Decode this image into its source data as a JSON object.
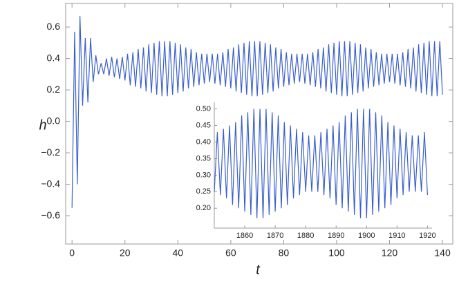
{
  "chart_data": [
    {
      "type": "line",
      "xlabel": "t",
      "ylabel": "h",
      "color": "#3a5fcd",
      "xlim": [
        -2.4,
        143.9
      ],
      "ylim": [
        -0.78,
        0.75
      ],
      "xticks": [
        0,
        20,
        40,
        60,
        80,
        100,
        120,
        140
      ],
      "yticks": [
        {
          "value": -0.6,
          "label": "−0.6"
        },
        {
          "value": -0.4,
          "label": "−0.4"
        },
        {
          "value": -0.2,
          "label": "−0.2"
        },
        {
          "value": 0,
          "label": "0.0"
        },
        0.2,
        0.4,
        0.6
      ],
      "x": [
        0,
        1,
        2,
        3,
        4,
        5,
        6,
        7,
        8,
        9,
        10,
        11,
        12,
        13,
        14,
        15,
        16,
        17,
        18,
        19,
        20,
        21,
        22,
        23,
        24,
        25,
        26,
        27,
        28,
        29,
        30,
        31,
        32,
        33,
        34,
        35,
        36,
        37,
        38,
        39,
        40,
        41,
        42,
        43,
        44,
        45,
        46,
        47,
        48,
        49,
        50,
        51,
        52,
        53,
        54,
        55,
        56,
        57,
        58,
        59,
        60,
        61,
        62,
        63,
        64,
        65,
        66,
        67,
        68,
        69,
        70,
        71,
        72,
        73,
        74,
        75,
        76,
        77,
        78,
        79,
        80,
        81,
        82,
        83,
        84,
        85,
        86,
        87,
        88,
        89,
        90,
        91,
        92,
        93,
        94,
        95,
        96,
        97,
        98,
        99,
        100,
        101,
        102,
        103,
        104,
        105,
        106,
        107,
        108,
        109,
        110,
        111,
        112,
        113,
        114,
        115,
        116,
        117,
        118,
        119,
        120,
        121,
        122,
        123,
        124,
        125,
        126,
        127,
        128,
        129,
        130,
        131,
        132,
        133,
        134,
        135,
        136,
        137,
        138,
        139,
        140
      ],
      "values": [
        -0.55,
        0.57,
        -0.4,
        0.67,
        0.1,
        0.53,
        0.12,
        0.53,
        0.25,
        0.42,
        0.3,
        0.37,
        0.3,
        0.4,
        0.29,
        0.41,
        0.28,
        0.4,
        0.27,
        0.41,
        0.26,
        0.43,
        0.23,
        0.44,
        0.22,
        0.46,
        0.21,
        0.47,
        0.19,
        0.49,
        0.18,
        0.5,
        0.17,
        0.51,
        0.16,
        0.51,
        0.16,
        0.51,
        0.17,
        0.5,
        0.18,
        0.49,
        0.19,
        0.47,
        0.21,
        0.46,
        0.22,
        0.44,
        0.23,
        0.43,
        0.24,
        0.43,
        0.25,
        0.43,
        0.24,
        0.43,
        0.23,
        0.44,
        0.22,
        0.46,
        0.21,
        0.47,
        0.19,
        0.49,
        0.18,
        0.5,
        0.17,
        0.51,
        0.16,
        0.51,
        0.16,
        0.51,
        0.17,
        0.5,
        0.18,
        0.49,
        0.19,
        0.47,
        0.21,
        0.46,
        0.22,
        0.44,
        0.23,
        0.43,
        0.24,
        0.43,
        0.25,
        0.43,
        0.24,
        0.43,
        0.23,
        0.44,
        0.22,
        0.46,
        0.21,
        0.47,
        0.19,
        0.49,
        0.18,
        0.5,
        0.17,
        0.51,
        0.16,
        0.51,
        0.16,
        0.51,
        0.17,
        0.5,
        0.18,
        0.49,
        0.19,
        0.47,
        0.21,
        0.46,
        0.22,
        0.44,
        0.23,
        0.43,
        0.24,
        0.43,
        0.25,
        0.43,
        0.24,
        0.43,
        0.23,
        0.44,
        0.22,
        0.46,
        0.21,
        0.47,
        0.19,
        0.49,
        0.18,
        0.5,
        0.17,
        0.51,
        0.16,
        0.51,
        0.16,
        0.51,
        0.17
      ]
    },
    {
      "type": "line",
      "color": "#3a5fcd",
      "xlim": [
        1850,
        1921.5
      ],
      "ylim": [
        0.14,
        0.52
      ],
      "xticks": [
        1860,
        1870,
        1880,
        1890,
        1900,
        1910,
        1920
      ],
      "yticks": [
        {
          "value": 0.2,
          "label": "0.20"
        },
        0.25,
        {
          "value": 0.3,
          "label": "0.30"
        },
        0.35,
        {
          "value": 0.4,
          "label": "0.40"
        },
        0.45,
        {
          "value": 0.5,
          "label": "0.50"
        }
      ],
      "x": [
        1850,
        1851,
        1852,
        1853,
        1854,
        1855,
        1856,
        1857,
        1858,
        1859,
        1860,
        1861,
        1862,
        1863,
        1864,
        1865,
        1866,
        1867,
        1868,
        1869,
        1870,
        1871,
        1872,
        1873,
        1874,
        1875,
        1876,
        1877,
        1878,
        1879,
        1880,
        1881,
        1882,
        1883,
        1884,
        1885,
        1886,
        1887,
        1888,
        1889,
        1890,
        1891,
        1892,
        1893,
        1894,
        1895,
        1896,
        1897,
        1898,
        1899,
        1900,
        1901,
        1902,
        1903,
        1904,
        1905,
        1906,
        1907,
        1908,
        1909,
        1910,
        1911,
        1912,
        1913,
        1914,
        1915,
        1916,
        1917,
        1918,
        1919,
        1920
      ],
      "values": [
        0.25,
        0.43,
        0.24,
        0.44,
        0.23,
        0.45,
        0.21,
        0.46,
        0.2,
        0.48,
        0.19,
        0.49,
        0.18,
        0.5,
        0.17,
        0.5,
        0.17,
        0.5,
        0.18,
        0.49,
        0.19,
        0.48,
        0.2,
        0.46,
        0.21,
        0.45,
        0.23,
        0.44,
        0.24,
        0.43,
        0.25,
        0.42,
        0.25,
        0.42,
        0.25,
        0.43,
        0.24,
        0.44,
        0.23,
        0.45,
        0.21,
        0.46,
        0.2,
        0.48,
        0.19,
        0.49,
        0.18,
        0.5,
        0.17,
        0.5,
        0.17,
        0.5,
        0.18,
        0.49,
        0.19,
        0.48,
        0.2,
        0.46,
        0.21,
        0.45,
        0.23,
        0.44,
        0.24,
        0.43,
        0.25,
        0.42,
        0.25,
        0.42,
        0.25,
        0.43,
        0.24
      ]
    }
  ]
}
